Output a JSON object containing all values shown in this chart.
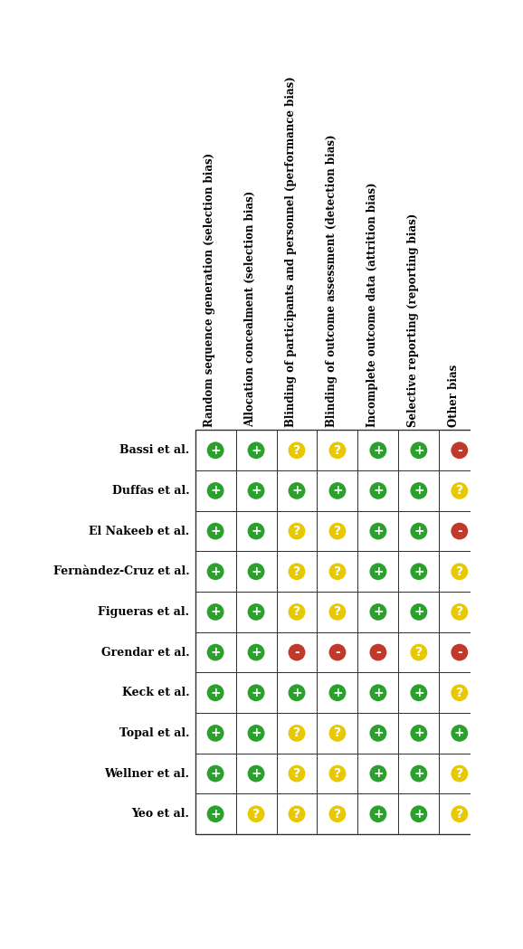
{
  "col_headers": [
    "Random sequence generation (selection bias)",
    "Allocation concealment (selection bias)",
    "Blinding of participants and personnel (performance bias)",
    "Blinding of outcome assessment (detection bias)",
    "Incomplete outcome data (attrition bias)",
    "Selective reporting (reporting bias)",
    "Other bias"
  ],
  "row_labels": [
    "Bassi et al.",
    "Duffas et al.",
    "El Nakeeb et al.",
    "Fernàndez-Cruz et al.",
    "Figueras et al.",
    "Grendar et al.",
    "Keck et al.",
    "Topal et al.",
    "Wellner et al.",
    "Yeo et al."
  ],
  "cells": [
    [
      "+",
      "+",
      "?",
      "?",
      "+",
      "+",
      "-"
    ],
    [
      "+",
      "+",
      "+",
      "+",
      "+",
      "+",
      "?"
    ],
    [
      "+",
      "+",
      "?",
      "?",
      "+",
      "+",
      "-"
    ],
    [
      "+",
      "+",
      "?",
      "?",
      "+",
      "+",
      "?"
    ],
    [
      "+",
      "+",
      "?",
      "?",
      "+",
      "+",
      "?"
    ],
    [
      "+",
      "+",
      "-",
      "-",
      "-",
      "?",
      "-"
    ],
    [
      "+",
      "+",
      "+",
      "+",
      "+",
      "+",
      "?"
    ],
    [
      "+",
      "+",
      "?",
      "?",
      "+",
      "+",
      "+"
    ],
    [
      "+",
      "+",
      "?",
      "?",
      "+",
      "+",
      "?"
    ],
    [
      "+",
      "?",
      "?",
      "?",
      "+",
      "+",
      "?"
    ]
  ],
  "color_map": {
    "+": "#2ca02c",
    "?": "#e8c800",
    "-": "#c0392b"
  },
  "text_color": "#ffffff",
  "bg_color": "#ffffff",
  "grid_color": "#333333",
  "label_fontsize": 9.0,
  "header_fontsize": 8.5,
  "symbol_fontsize": 10
}
